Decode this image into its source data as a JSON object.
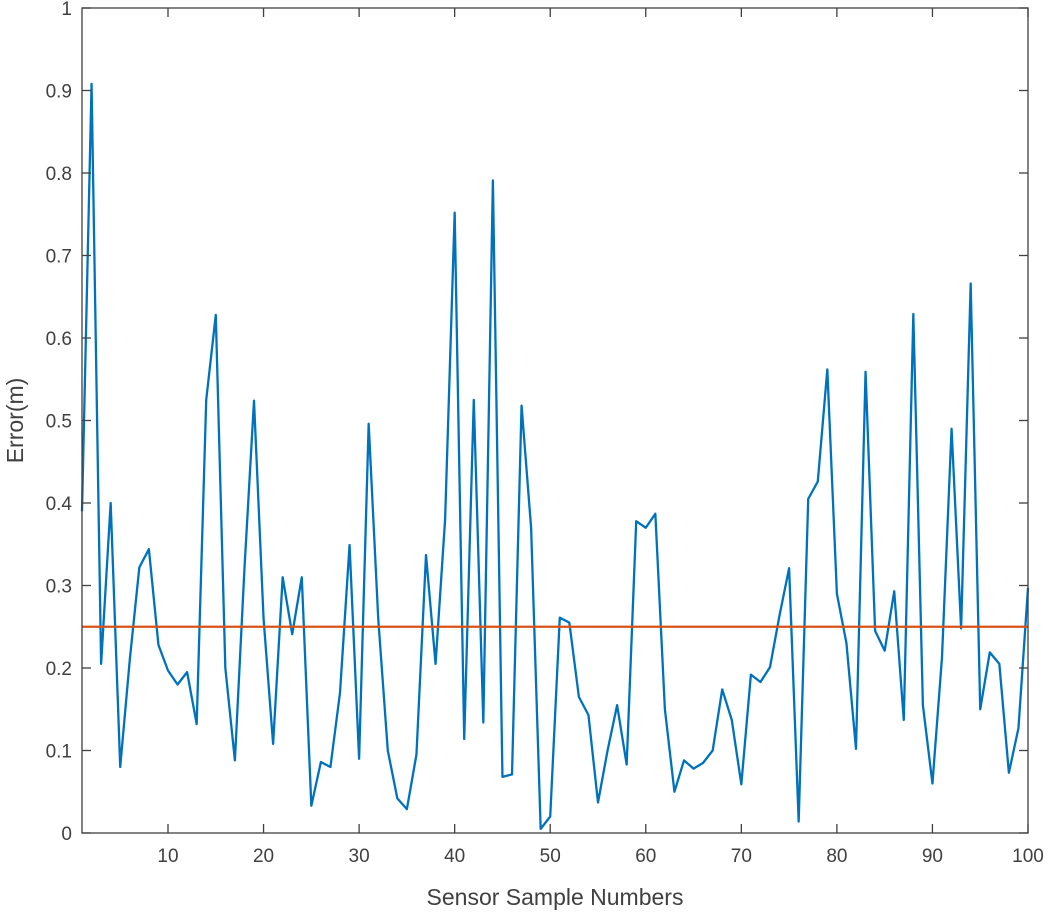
{
  "chart_data": {
    "type": "line",
    "title": "",
    "xlabel": "Sensor Sample Numbers",
    "ylabel": "Error(m)",
    "xlim": [
      1,
      100
    ],
    "ylim": [
      0,
      1
    ],
    "xticks": [
      10,
      20,
      30,
      40,
      50,
      60,
      70,
      80,
      90,
      100
    ],
    "yticks": [
      0,
      0.1,
      0.2,
      0.3,
      0.4,
      0.5,
      0.6,
      0.7,
      0.8,
      0.9,
      1
    ],
    "ytick_labels": [
      "0",
      "0.1",
      "0.2",
      "0.3",
      "0.4",
      "0.5",
      "0.6",
      "0.7",
      "0.8",
      "0.9",
      "1"
    ],
    "grid": false,
    "box": true,
    "colors": {
      "series": "#0072BD",
      "threshold": "#D95319",
      "axis": "#404040"
    },
    "series": [
      {
        "x": [
          1,
          2,
          3,
          4,
          5,
          6,
          7,
          8,
          9,
          10,
          11,
          12,
          13,
          14,
          15,
          16,
          17,
          18,
          19,
          20,
          21,
          22,
          23,
          24,
          25,
          26,
          27,
          28,
          29,
          30,
          31,
          32,
          33,
          34,
          35,
          36,
          37,
          38,
          39,
          40,
          41,
          42,
          43,
          44,
          45,
          46,
          47,
          48,
          49,
          50,
          51,
          52,
          53,
          54,
          55,
          56,
          57,
          58,
          59,
          60,
          61,
          62,
          63,
          64,
          65,
          66,
          67,
          68,
          69,
          70,
          71,
          72,
          73,
          74,
          75,
          76,
          77,
          78,
          79,
          80,
          81,
          82,
          83,
          84,
          85,
          86,
          87,
          88,
          89,
          90,
          91,
          92,
          93,
          94,
          95,
          96,
          97,
          98,
          99,
          100
        ],
        "values": [
          0.39,
          0.908,
          0.205,
          0.4,
          0.08,
          0.21,
          0.322,
          0.344,
          0.228,
          0.197,
          0.18,
          0.195,
          0.132,
          0.525,
          0.628,
          0.2,
          0.088,
          0.32,
          0.524,
          0.26,
          0.108,
          0.31,
          0.241,
          0.31,
          0.033,
          0.086,
          0.08,
          0.17,
          0.349,
          0.09,
          0.496,
          0.26,
          0.1,
          0.042,
          0.029,
          0.095,
          0.337,
          0.205,
          0.38,
          0.752,
          0.114,
          0.525,
          0.134,
          0.791,
          0.068,
          0.071,
          0.518,
          0.37,
          0.005,
          0.02,
          0.261,
          0.255,
          0.165,
          0.143,
          0.037,
          0.1,
          0.155,
          0.083,
          0.378,
          0.37,
          0.387,
          0.15,
          0.05,
          0.088,
          0.078,
          0.085,
          0.1,
          0.174,
          0.137,
          0.059,
          0.192,
          0.183,
          0.201,
          0.264,
          0.321,
          0.014,
          0.405,
          0.426,
          0.562,
          0.29,
          0.23,
          0.102,
          0.559,
          0.245,
          0.221,
          0.293,
          0.137,
          0.629,
          0.155,
          0.06,
          0.213,
          0.49,
          0.248,
          0.666,
          0.15,
          0.219,
          0.205,
          0.073,
          0.127,
          0.297
        ]
      },
      {
        "x": [
          1,
          100
        ],
        "values": [
          0.25,
          0.25
        ]
      }
    ]
  }
}
